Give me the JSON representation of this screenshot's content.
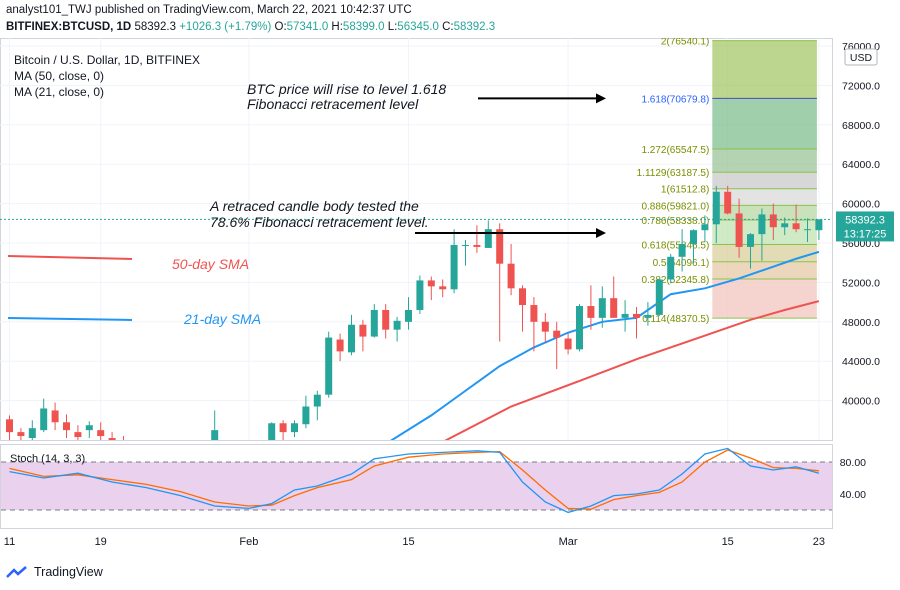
{
  "header": {
    "publisher": "analyst101_TWJ published on TradingView.com, March 22, 2021 10:42:37 UTC",
    "symbol": "BITFINEX:BTCUSD, 1D",
    "last": "58392.3",
    "change": "+1026.3 (+1.79%)",
    "o_label": "O:",
    "o_value": "57341.0",
    "h_label": "H:",
    "h_value": "58399.0",
    "l_label": "L:",
    "l_value": "56345.0",
    "c_label": "C:",
    "c_value": "58392.3"
  },
  "legend": {
    "title": "Bitcoin / U.S. Dollar, 1D, BITFINEX",
    "ma50": "MA (50, close, 0)",
    "ma21": "MA (21, close, 0)"
  },
  "price_axis": {
    "currency_badge": "USD",
    "last_price_badge": "58392.3",
    "countdown": "13:17:25"
  },
  "annotations": {
    "fib_target_line1": "BTC price will rise to level 1.618",
    "fib_target_line2": "Fibonacci retracement level",
    "retrace_line1": "A retraced candle body tested the",
    "retrace_line2": "78.6% Fibonacci retracement level.",
    "sma50_label": "50-day SMA",
    "sma21_label": "21-day SMA"
  },
  "stoch": {
    "label": "Stoch (14, 3, 3)",
    "ticks": [
      "80.00",
      "40.00"
    ],
    "upper_band": 80,
    "lower_band": 20,
    "k_color": "#2196f3",
    "d_color": "#ff6d00",
    "band_fill": "#e1bee7"
  },
  "footer": {
    "brand": "TradingView"
  },
  "colors": {
    "bull": "#26a69a",
    "bear": "#ef5350",
    "sma50": "#ef5350",
    "sma21": "#2196f3",
    "fib_label": "#7b8f00",
    "fib_target_label": "#2962ff",
    "text": "#131722"
  },
  "chart_data": {
    "type": "candlestick",
    "title": "Bitcoin / U.S. Dollar, 1D, BITFINEX",
    "ylim": [
      36000,
      76500
    ],
    "y_ticks": [
      "76000.0",
      "72000.0",
      "68000.0",
      "64000.0",
      "60000.0",
      "56000.0",
      "52000.0",
      "48000.0",
      "44000.0",
      "40000.0"
    ],
    "x_ticks": [
      {
        "label": "11",
        "day": 0
      },
      {
        "label": "19",
        "day": 8
      },
      {
        "label": "Feb",
        "day": 21
      },
      {
        "label": "15",
        "day": 35
      },
      {
        "label": "Mar",
        "day": 49
      },
      {
        "label": "15",
        "day": 63
      },
      {
        "label": "23",
        "day": 71
      }
    ],
    "candles": [
      [
        0,
        38100,
        38500,
        36000,
        36800
      ],
      [
        1,
        36800,
        37200,
        36000,
        36400
      ],
      [
        2,
        36200,
        38000,
        35500,
        37200
      ],
      [
        3,
        37000,
        40200,
        36800,
        39200
      ],
      [
        4,
        39000,
        39800,
        37000,
        37800
      ],
      [
        5,
        37800,
        38600,
        36200,
        37000
      ],
      [
        6,
        36800,
        37500,
        35800,
        36300
      ],
      [
        7,
        37000,
        37900,
        36200,
        37500
      ],
      [
        8,
        37000,
        37800,
        35800,
        36400
      ],
      [
        9,
        36200,
        36800,
        35500,
        35900
      ],
      [
        10,
        35900,
        36400,
        35000,
        35300
      ],
      [
        18,
        35700,
        39000,
        35500,
        37000
      ],
      [
        23,
        35400,
        37800,
        34800,
        37700
      ],
      [
        24,
        37700,
        38000,
        36000,
        36800
      ],
      [
        25,
        36800,
        38000,
        36300,
        37700
      ],
      [
        26,
        37600,
        40500,
        37200,
        39400
      ],
      [
        27,
        39400,
        41000,
        38000,
        40600
      ],
      [
        28,
        40600,
        47000,
        40300,
        46400
      ],
      [
        29,
        46200,
        46800,
        44000,
        45000
      ],
      [
        30,
        44900,
        48700,
        44600,
        47700
      ],
      [
        31,
        47700,
        48200,
        45000,
        46500
      ],
      [
        32,
        46500,
        49800,
        46400,
        49200
      ],
      [
        33,
        49200,
        49800,
        46300,
        47200
      ],
      [
        34,
        47200,
        48500,
        46000,
        48100
      ],
      [
        35,
        48000,
        50500,
        47200,
        49200
      ],
      [
        36,
        49200,
        52700,
        48800,
        52200
      ],
      [
        37,
        52200,
        52600,
        50200,
        51600
      ],
      [
        38,
        51600,
        52300,
        50500,
        51300
      ],
      [
        39,
        51300,
        57400,
        50900,
        55800
      ],
      [
        40,
        55700,
        56300,
        53700,
        55800
      ],
      [
        41,
        55800,
        57800,
        55000,
        55600
      ],
      [
        42,
        55500,
        58300,
        55500,
        57400
      ],
      [
        43,
        57400,
        58000,
        46000,
        53900
      ],
      [
        44,
        53900,
        55900,
        50700,
        51400
      ],
      [
        45,
        51400,
        51700,
        47000,
        49700
      ],
      [
        46,
        49700,
        50500,
        45000,
        48000
      ],
      [
        47,
        48000,
        48900,
        45900,
        47000
      ],
      [
        48,
        47100,
        48000,
        43200,
        46400
      ],
      [
        49,
        46300,
        46800,
        44700,
        45200
      ],
      [
        50,
        45200,
        49800,
        45000,
        49600
      ],
      [
        51,
        49600,
        51700,
        47200,
        48400
      ],
      [
        52,
        48400,
        51600,
        47400,
        50400
      ],
      [
        53,
        50400,
        52600,
        48700,
        48400
      ],
      [
        54,
        48400,
        50200,
        47000,
        48800
      ],
      [
        55,
        48800,
        49500,
        46300,
        48400
      ],
      [
        56,
        48400,
        50000,
        47600,
        48700
      ],
      [
        57,
        48700,
        52400,
        48600,
        52300
      ],
      [
        58,
        52300,
        54900,
        51900,
        54600
      ],
      [
        59,
        54600,
        57400,
        53100,
        55900
      ],
      [
        60,
        55900,
        57400,
        53900,
        57300
      ],
      [
        61,
        57300,
        58800,
        56100,
        57900
      ],
      [
        62,
        57900,
        61800,
        56000,
        61200
      ],
      [
        63,
        61200,
        61800,
        58900,
        59000
      ],
      [
        64,
        59000,
        60500,
        54500,
        55600
      ],
      [
        65,
        55600,
        57000,
        53400,
        56900
      ],
      [
        66,
        56900,
        59500,
        54200,
        58900
      ],
      [
        67,
        58900,
        60000,
        56300,
        57600
      ],
      [
        68,
        57600,
        58600,
        56800,
        58000
      ],
      [
        69,
        58000,
        59900,
        57100,
        57400
      ],
      [
        70,
        57400,
        58500,
        56100,
        57400
      ],
      [
        71,
        57300,
        58400,
        56300,
        58400
      ]
    ],
    "series": [
      {
        "name": "MA (50, close, 0)",
        "x": [
          38,
          44,
          50,
          55,
          60,
          65,
          68,
          71
        ],
        "values": [
          35800,
          39400,
          42000,
          44200,
          46200,
          48200,
          49200,
          50100
        ]
      },
      {
        "name": "MA (21, close, 0)",
        "x": [
          33,
          37,
          40,
          43,
          46,
          49,
          52,
          55,
          58,
          61,
          64,
          67,
          69,
          71
        ],
        "values": [
          35600,
          38500,
          41000,
          43500,
          45400,
          46900,
          48000,
          48400,
          50800,
          51400,
          52400,
          53600,
          54400,
          55100
        ]
      }
    ],
    "fibonacci": {
      "date_range_days": [
        62,
        71
      ],
      "levels": [
        {
          "label": "2(76540.1)",
          "value": 76540.1
        },
        {
          "label": "1.618(70679.8)",
          "value": 70679.8
        },
        {
          "label": "1.272(65547.5)",
          "value": 65547.5
        },
        {
          "label": "1.1129(63187.5)",
          "value": 63187.5
        },
        {
          "label": "1(61512.8)",
          "value": 61512.8
        },
        {
          "label": "0.886(59821.0)",
          "value": 59821.0
        },
        {
          "label": "0.786(58338.0)",
          "value": 58338.0
        },
        {
          "label": "0.618(55846.5)",
          "value": 55846.5
        },
        {
          "label": "0.5(54096.1)",
          "value": 54096.1
        },
        {
          "label": "0.382(52345.8)",
          "value": 52345.8
        },
        {
          "label": "0.114(48370.5)",
          "value": 48370.5
        }
      ]
    },
    "stochastic": {
      "ylim": [
        0,
        100
      ],
      "k": [
        [
          0,
          68
        ],
        [
          3,
          60
        ],
        [
          6,
          66
        ],
        [
          9,
          55
        ],
        [
          12,
          48
        ],
        [
          15,
          38
        ],
        [
          18,
          25
        ],
        [
          21,
          22
        ],
        [
          23,
          28
        ],
        [
          25,
          45
        ],
        [
          27,
          50
        ],
        [
          30,
          65
        ],
        [
          32,
          84
        ],
        [
          35,
          90
        ],
        [
          38,
          92
        ],
        [
          41,
          94
        ],
        [
          43,
          92
        ],
        [
          45,
          55
        ],
        [
          47,
          30
        ],
        [
          49,
          17
        ],
        [
          51,
          25
        ],
        [
          53,
          38
        ],
        [
          55,
          40
        ],
        [
          57,
          45
        ],
        [
          59,
          65
        ],
        [
          61,
          90
        ],
        [
          63,
          97
        ],
        [
          65,
          75
        ],
        [
          67,
          70
        ],
        [
          69,
          74
        ],
        [
          71,
          66
        ]
      ],
      "d": [
        [
          0,
          72
        ],
        [
          3,
          62
        ],
        [
          6,
          64
        ],
        [
          9,
          58
        ],
        [
          12,
          52
        ],
        [
          15,
          43
        ],
        [
          18,
          30
        ],
        [
          21,
          25
        ],
        [
          23,
          26
        ],
        [
          25,
          38
        ],
        [
          27,
          48
        ],
        [
          30,
          58
        ],
        [
          32,
          75
        ],
        [
          35,
          86
        ],
        [
          38,
          90
        ],
        [
          41,
          92
        ],
        [
          43,
          93
        ],
        [
          45,
          70
        ],
        [
          47,
          45
        ],
        [
          49,
          22
        ],
        [
          51,
          21
        ],
        [
          53,
          33
        ],
        [
          55,
          38
        ],
        [
          57,
          42
        ],
        [
          59,
          55
        ],
        [
          61,
          80
        ],
        [
          63,
          95
        ],
        [
          65,
          85
        ],
        [
          67,
          73
        ],
        [
          69,
          72
        ],
        [
          71,
          69
        ]
      ]
    }
  }
}
